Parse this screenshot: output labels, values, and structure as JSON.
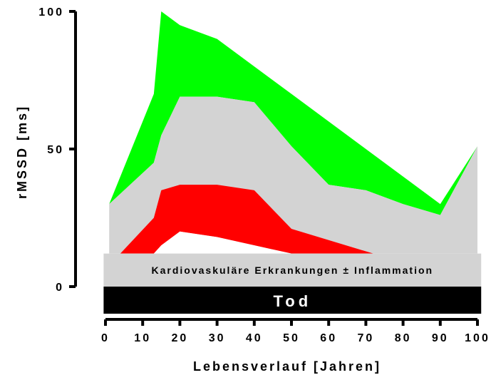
{
  "chart_data": {
    "type": "area",
    "xlabel": "Lebensverlauf [Jahren]",
    "ylabel": "rMSSD [ms]",
    "xlim": [
      0,
      100
    ],
    "ylim": [
      0,
      100
    ],
    "x_ticks": [
      "0",
      "10",
      "20",
      "30",
      "40",
      "50",
      "60",
      "70",
      "80",
      "90",
      "100"
    ],
    "y_ticks": [
      "0",
      "50",
      "100"
    ],
    "grid": false,
    "colors": {
      "green": "#00ff00",
      "grey": "#d3d3d3",
      "red": "#ff0000",
      "white": "#ffffff",
      "black": "#000000"
    },
    "series": [
      {
        "color": "green",
        "x": [
          1,
          13,
          15,
          20,
          30,
          40,
          50,
          60,
          70,
          80,
          90,
          100
        ],
        "upper": [
          30,
          70,
          100,
          95,
          90,
          80,
          70,
          60,
          50,
          40,
          30,
          51
        ],
        "lower": [
          30,
          45,
          55,
          69,
          69,
          67,
          51,
          37,
          35,
          30,
          26,
          51
        ]
      },
      {
        "color": "grey",
        "x": [
          1,
          13,
          15,
          20,
          30,
          40,
          50,
          60,
          70,
          80,
          90,
          100
        ],
        "upper": [
          30,
          45,
          55,
          69,
          69,
          67,
          51,
          37,
          35,
          30,
          26,
          51
        ],
        "lower": [
          12,
          12,
          12,
          12,
          12,
          12,
          12,
          12,
          12,
          12,
          12,
          12
        ]
      },
      {
        "color": "red",
        "x": [
          4,
          13,
          15,
          20,
          30,
          40,
          50,
          72
        ],
        "upper": [
          12,
          25,
          35,
          37,
          37,
          35,
          21,
          12
        ],
        "lower": [
          12,
          12,
          15,
          20,
          18,
          15,
          12,
          12
        ]
      }
    ],
    "bands": {
      "disease": {
        "y_range": [
          0,
          12
        ],
        "x_range": [
          -0.5,
          101
        ],
        "label": "Kardiovaskuläre Erkrankungen ± Inflammation"
      },
      "death": {
        "y_range": [
          -20,
          0
        ],
        "x_range": [
          -0.5,
          101
        ],
        "label": "Tod"
      }
    }
  }
}
